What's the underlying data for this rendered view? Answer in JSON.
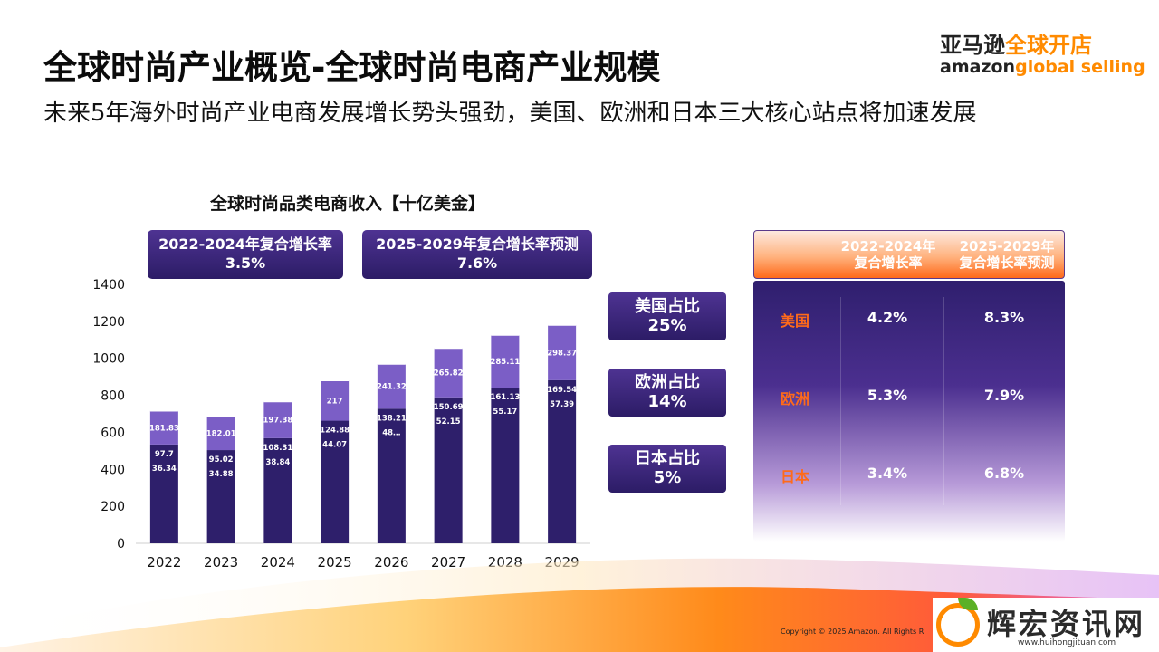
{
  "title": "全球时尚产业概览-全球时尚电商产业规模",
  "subtitle": "未来5年海外时尚产业电商发展增长势头强劲，美国、欧洲和日本三大核心站点将加速发展",
  "logo": {
    "cn_part1": "亚马逊",
    "cn_part2": "全球开店",
    "en_part1": "amazon",
    "en_part2": "global selling"
  },
  "cagr_boxes": [
    {
      "label": "2022-2024年复合增长率",
      "value": "3.5%"
    },
    {
      "label": "2025-2029年复合增长率预测",
      "value": "7.6%"
    }
  ],
  "share_boxes": [
    {
      "label": "美国占比",
      "value": "25%"
    },
    {
      "label": "欧洲占比",
      "value": "14%"
    },
    {
      "label": "日本占比",
      "value": "5%"
    }
  ],
  "table": {
    "headers": [
      "2022-2024年\n复合增长率",
      "2025-2029年\n复合增长率预测"
    ],
    "header_line1": [
      "2022-2024年",
      "2025-2029年"
    ],
    "header_line2": [
      "复合增长率",
      "复合增长率预测"
    ],
    "rows": [
      {
        "region": "美国",
        "cagr_2022_2024": "4.2%",
        "cagr_2025_2029": "8.3%"
      },
      {
        "region": "欧洲",
        "cagr_2022_2024": "5.3%",
        "cagr_2025_2029": "7.9%"
      },
      {
        "region": "日本",
        "cagr_2022_2024": "3.4%",
        "cagr_2025_2029": "6.8%"
      }
    ]
  },
  "copyright": "Copyright © 2025 Amazon. All Rights R",
  "watermark": {
    "text": "辉宏资讯网",
    "url": "www.huihongjituan.com"
  },
  "colors": {
    "dark_purple": "#2e1f6b",
    "mid_purple": "#4a2f8f",
    "light_purple": "#7e60c8",
    "orange": "#ff6a1a",
    "amazon_orange": "#ff8a00"
  },
  "chart_data": {
    "type": "bar",
    "stacked": true,
    "title": "全球时尚品类电商收入【十亿美金】",
    "categories": [
      "2022",
      "2023",
      "2024",
      "2025",
      "2026",
      "2027",
      "2028",
      "2029"
    ],
    "totals": [
      716,
      686,
      766,
      880,
      969,
      1055,
      1126,
      1180
    ],
    "segment_labels": [
      [
        "36.34",
        "97.7",
        "181.83"
      ],
      [
        "34.88",
        "95.02",
        "182.01"
      ],
      [
        "38.84",
        "108.31",
        "197.38"
      ],
      [
        "44.07",
        "124.88",
        "217"
      ],
      [
        "48…",
        "138.21",
        "241.32"
      ],
      [
        "52.15",
        "150.69",
        "265.82"
      ],
      [
        "55.17",
        "161.13",
        "285.11"
      ],
      [
        "57.39",
        "169.54",
        "298.37"
      ]
    ],
    "top_segment": [
      181.83,
      182.01,
      197.38,
      217,
      241.32,
      265.82,
      285.11,
      298.37
    ],
    "ylim": [
      0,
      1400
    ],
    "yticks": [
      "0",
      "200",
      "400",
      "600",
      "800",
      "1000",
      "1200",
      "1400"
    ],
    "grid": false
  }
}
